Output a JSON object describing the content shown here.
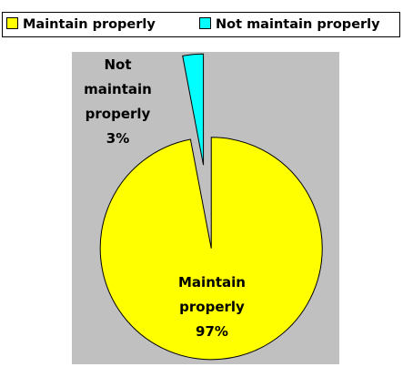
{
  "chart_data": {
    "type": "pie",
    "categories": [
      "Maintain properly",
      "Not maintain properly"
    ],
    "values": [
      97,
      3
    ],
    "value_labels": [
      "97%",
      "3%"
    ],
    "colors": [
      "#ffff00",
      "#00ffff"
    ],
    "legend": "top"
  }
}
